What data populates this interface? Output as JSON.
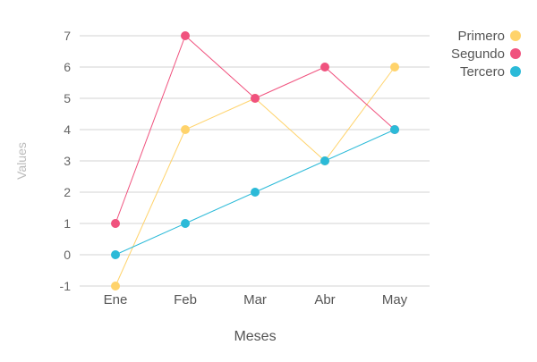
{
  "chart_data": {
    "type": "line",
    "xlabel": "Meses",
    "ylabel": "Values",
    "categories": [
      "Ene",
      "Feb",
      "Mar",
      "Abr",
      "May"
    ],
    "ylim": [
      -1,
      7
    ],
    "yticks": [
      -1,
      0,
      1,
      2,
      3,
      4,
      5,
      6,
      7
    ],
    "grid": true,
    "legend_position": "top-right",
    "series": [
      {
        "name": "Primero",
        "color": "#ffd36b",
        "values": [
          -1,
          4,
          5,
          3,
          6
        ]
      },
      {
        "name": "Segundo",
        "color": "#f0527e",
        "values": [
          1,
          7,
          5,
          6,
          4
        ]
      },
      {
        "name": "Tercero",
        "color": "#2bbad8",
        "values": [
          0,
          1,
          2,
          3,
          4
        ]
      }
    ]
  }
}
